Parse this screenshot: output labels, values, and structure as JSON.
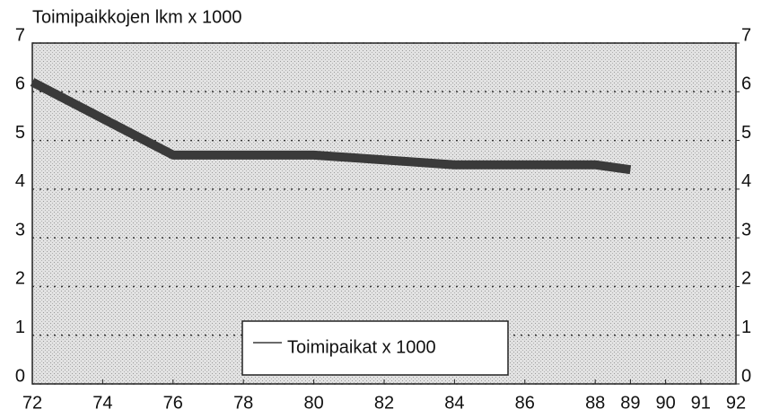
{
  "chart_data": {
    "type": "line",
    "title": "Toimipaikkojen lkm x 1000",
    "x": [
      72,
      76,
      80,
      84,
      88,
      89
    ],
    "series": [
      {
        "name": "Toimipaikat x 1000",
        "color": "#3a3a3a",
        "values": [
          6.2,
          4.7,
          4.7,
          4.5,
          4.5,
          4.4
        ]
      }
    ],
    "xlim": [
      72,
      92
    ],
    "xticks": [
      72,
      74,
      76,
      78,
      80,
      82,
      84,
      86,
      88,
      89,
      90,
      91,
      92
    ],
    "ylim": [
      0,
      7
    ],
    "yticks": [
      0,
      1,
      2,
      3,
      4,
      5,
      6,
      7
    ],
    "y2lim": [
      0,
      7
    ],
    "y2ticks": [
      0,
      1,
      2,
      3,
      4,
      5,
      6,
      7
    ],
    "grid": true,
    "legend": "lower center"
  }
}
